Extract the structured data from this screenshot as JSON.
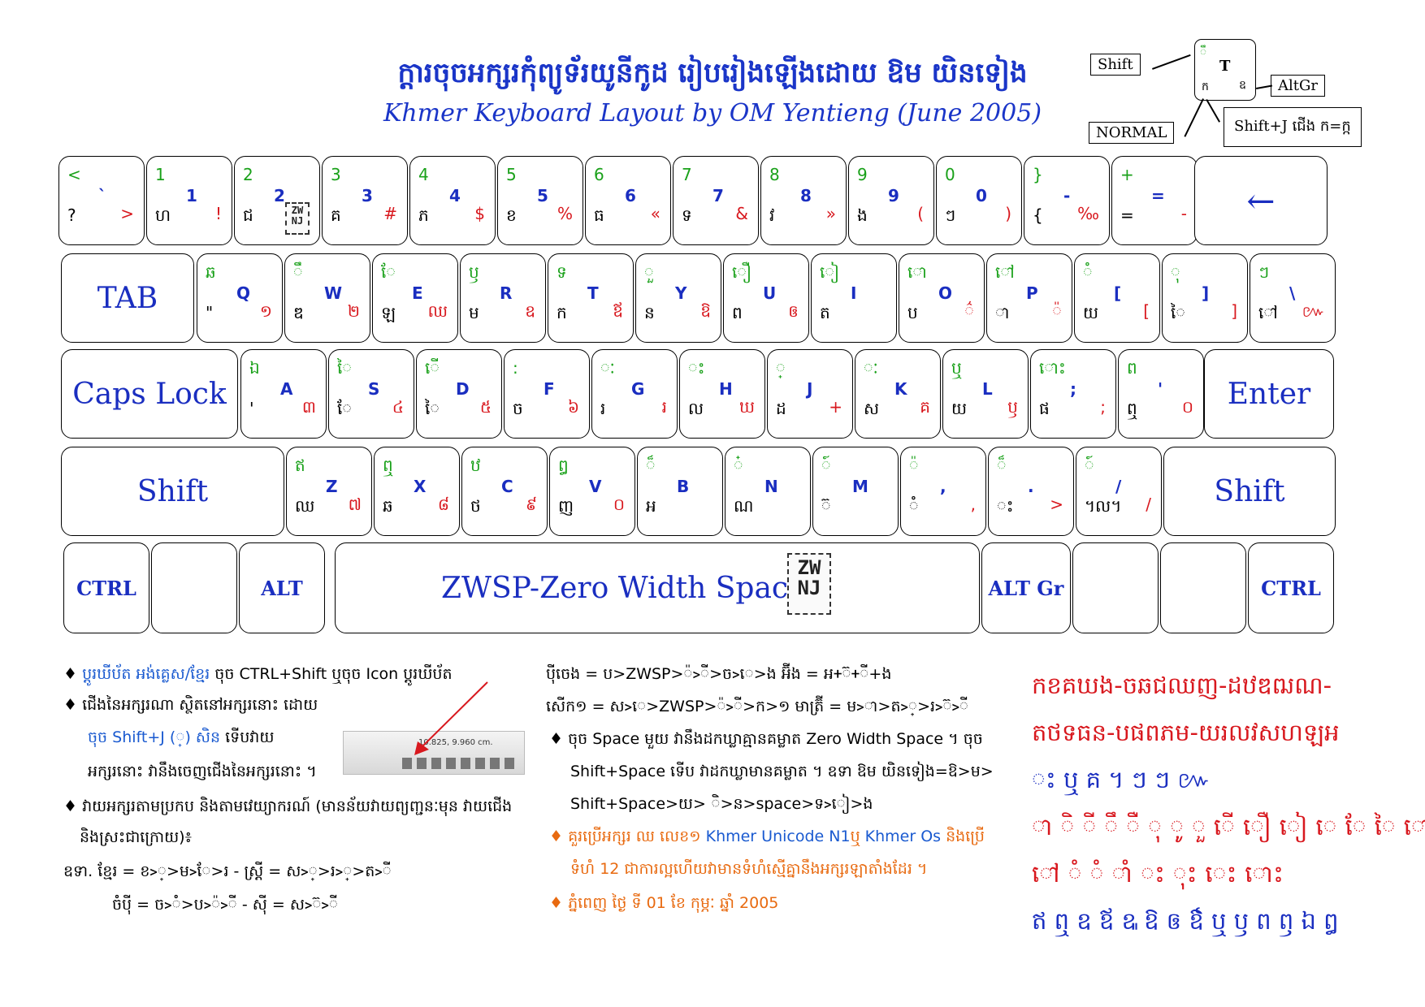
{
  "title": {
    "khmer": "ក្តារចុចអក្សរកុំព្យូទ័រយូនីកូដ  រៀបរៀងឡើងដោយ  ឱម យិនទៀង",
    "english": "Khmer Keyboard Layout by OM Yentieng (June 2005)"
  },
  "legend": {
    "shift": "Shift",
    "altgr": "AltGr",
    "normal": "NORMAL",
    "shiftj": "Shift+J  ជើង ក=ក្ក",
    "key_top_left": "ឹ",
    "key_center": "T",
    "key_bottom_left": "ក",
    "key_bottom_right": "ឧ"
  },
  "rows": [
    [
      {
        "g": "<",
        "b": "`",
        "k": "?",
        "r": ">"
      },
      {
        "g": "1",
        "b": "1",
        "k": "ហ",
        "r": "!"
      },
      {
        "g": "2",
        "b": "2",
        "k": "ជ",
        "r": ""
      },
      {
        "g": "3",
        "b": "3",
        "k": "គ",
        "r": "#"
      },
      {
        "g": "4",
        "b": "4",
        "k": "ភ",
        "r": "$"
      },
      {
        "g": "5",
        "b": "5",
        "k": "ខ",
        "r": "%"
      },
      {
        "g": "6",
        "b": "6",
        "k": "ធ",
        "r": "«"
      },
      {
        "g": "7",
        "b": "7",
        "k": "ទ",
        "r": "&"
      },
      {
        "g": "8",
        "b": "8",
        "k": "វ",
        "r": "»"
      },
      {
        "g": "9",
        "b": "9",
        "k": "ង",
        "r": "("
      },
      {
        "g": "0",
        "b": "0",
        "k": "ៗ",
        "r": ")"
      },
      {
        "g": "}",
        "b": "-",
        "k": "{",
        "r": "‰"
      },
      {
        "g": "+",
        "b": "=",
        "k": "=",
        "r": "-"
      }
    ],
    [
      {
        "g": "ឆ",
        "b": "Q",
        "k": "\"",
        "r": "១"
      },
      {
        "g": "ឹ",
        "b": "W",
        "k": "ឌ",
        "r": "២"
      },
      {
        "g": "ែ",
        "b": "E",
        "k": "ឡ",
        "r": "ឈ"
      },
      {
        "g": "ឫ",
        "b": "R",
        "k": "ម",
        "r": "ឧ"
      },
      {
        "g": "ទ",
        "b": "T",
        "k": "ក",
        "r": "ឪ"
      },
      {
        "g": "ួ",
        "b": "Y",
        "k": "ន",
        "r": "ឱ"
      },
      {
        "g": "ឿ",
        "b": "U",
        "k": "ព",
        "r": "ឲ"
      },
      {
        "g": "ៀ",
        "b": "I",
        "k": "ត",
        "r": ""
      },
      {
        "g": "ោ",
        "b": "O",
        "k": "ប",
        "r": "៌"
      },
      {
        "g": "ៅ",
        "b": "P",
        "k": "ា",
        "r": "៉"
      },
      {
        "g": "ំ",
        "b": "[",
        "k": "យ",
        "r": "["
      },
      {
        "g": "ុ",
        "b": "]",
        "k": "ៃ",
        "r": "]"
      },
      {
        "g": "ៗ",
        "b": "\\",
        "k": "ៅ",
        "r": "៚"
      }
    ],
    [
      {
        "g": "ឯ",
        "b": "A",
        "k": "'",
        "r": "៣"
      },
      {
        "g": "ៃ",
        "b": "S",
        "k": "ែ",
        "r": "៤"
      },
      {
        "g": "ើ",
        "b": "D",
        "k": "ៃ",
        "r": "៥"
      },
      {
        "g": ":",
        "b": "F",
        "k": "ច",
        "r": "៦"
      },
      {
        "g": "ៈ",
        "b": "G",
        "k": "រ",
        "r": "រ"
      },
      {
        "g": "ះ",
        "b": "H",
        "k": "ល",
        "r": "ឃ"
      },
      {
        "g": "្",
        "b": "J",
        "k": "ដ",
        "r": "+"
      },
      {
        "g": "ៈ",
        "b": "K",
        "k": "ស",
        "r": "គ"
      },
      {
        "g": "ឬ",
        "b": "L",
        "k": "យ",
        "r": "ឫ"
      },
      {
        "g": "ោះ",
        "b": ";",
        "k": "ផ",
        "r": ";"
      },
      {
        "g": "ព",
        "b": "'",
        "k": "ឮ",
        "r": "០"
      }
    ],
    [
      {
        "g": "ឥ",
        "b": "Z",
        "k": "ឈ",
        "r": "៧"
      },
      {
        "g": "ឮ",
        "b": "X",
        "k": "ឆ",
        "r": "៨"
      },
      {
        "g": "ឋ",
        "b": "C",
        "k": "ថ",
        "r": "៩"
      },
      {
        "g": "ឰ",
        "b": "V",
        "k": "ញ",
        "r": "០"
      },
      {
        "g": "៏",
        "b": "B",
        "k": "អ",
        "r": ""
      },
      {
        "g": "៎",
        "b": "N",
        "k": "ណ",
        "r": ""
      },
      {
        "g": "៍",
        "b": "M",
        "k": "៊",
        "r": ""
      },
      {
        "g": "៉",
        "b": ",",
        "k": "ំ",
        "r": ","
      },
      {
        "g": "៏",
        "b": ".",
        "k": "ះ",
        "r": ">"
      },
      {
        "g": "៍",
        "b": "/",
        "k": "។ល។",
        "r": "/"
      }
    ]
  ],
  "specials": {
    "backspace": "←",
    "tab": "TAB",
    "caps": "Caps Lock",
    "enter": "Enter",
    "shift_l": "Shift",
    "shift_r": "Shift",
    "ctrl_l": "CTRL",
    "alt": "ALT",
    "space": "ZWSP-Zero Width Space",
    "altgr": "ALT Gr",
    "ctrl_r": "CTRL",
    "zwnj": "ZW NJ"
  },
  "notes": {
    "n1_blue": "ប្តូរឃីប័ត អង់គ្លេស/ខ្មែរ",
    "n1_rest": " ចុច CTRL+Shift ឬចុច Icon ប្តូរឃីប័ត",
    "n2": "ជើងនៃអក្សរណា ស្ថិតនៅអក្សរនោះ ដោយ",
    "n3_blue": "ចុច Shift+J (្) សិន",
    "n3_rest": " ទើបវាយ",
    "n4": "អក្សរនោះ វានឹងចេញជើងនៃអក្សរនោះ ។",
    "n5": "វាយអក្សរតាមប្រកប និងតាមវេយ្យាករណ៍ (មានន័យវាយព្យញ្ជនៈមុន វាយជើង",
    "n6": "និងស្រះជាក្រោយ)៖",
    "n7": "ឧទា. ខ្មែរ = ខ>្>ម>ែ>រ   -  ស្ត្រី = ស>្>រ>្>ត>ី",
    "n8": "ចំប៉ី = ច>ំ>ប>៉>ី  -            ស៊ី = ស>៊>ី",
    "m1": "ប៉ីចេង = ប>ZWSP>៉>ី>ច>េ>ង       អ៊ីង = អ+៊+ី+ង",
    "m2": "សើក១ = ស>េ>ZWSP>៉>ី>ក>១      មាត្រ៊ី = ម>ា>ត>្>រ>៊>ី",
    "m3": "ចុច Space មួយ វានឹងដកឃ្លាគ្មានគម្លាត Zero Width Space ។ ចុច",
    "m4": "Shift+Space ទើប វាដកឃ្លាមានគម្លាត ។ ឧទា ឱម យិនទៀង=ឱ>ម>",
    "m5": "Shift+Space>យ> ិ>ន>space>ទ>ៀ>ង",
    "m6_orange": "គួរប្រើអក្សរ ឈ លេខ១ ",
    "m6_blue": "Khmer Unicode N1",
    "m6_orange2": "ឬ ",
    "m6_blue2": "Khmer Os",
    "m6_orange3": " និងប្រើ",
    "m7": "ទំហំ 12 ជាការល្អហើយវាមានទំហំស្មើគ្នានឹងអក្សរឡាតាំងដែរ ។",
    "m8": "ភ្នំពេញ ថ្ងៃ ទី 01 ខែ កុម្ភៈ ឆ្នាំ 2005",
    "screenshot_text": "10.825, 9.960 cm."
  },
  "right_col": {
    "r1": "កខគឃង-ចឆជឈញ-ដឋឌឍណ-",
    "r2": "តថទធន-បផពភម-យរលវសហឡអ",
    "r3": "ះ ឬ គ ។ ៗ ៗ ៚",
    "r4": "ា ិ ី ឹ ឺ ុ ូ ួ ើ ឿ ៀ េ ែ ៃ  ោ",
    "r5": "ៅ ំ ំ ាំ ះ ុះ េះ ោះ",
    "r6": "ឥ ឮ ឧ ឪ ឩ ឱ ឲ ឳ ឬ ឫ ព ឭ ឯ ឰ"
  },
  "colors": {
    "blue": "#1a2ec0",
    "green": "#1aa11a",
    "red": "#d8181e",
    "orange": "#e86a10"
  }
}
